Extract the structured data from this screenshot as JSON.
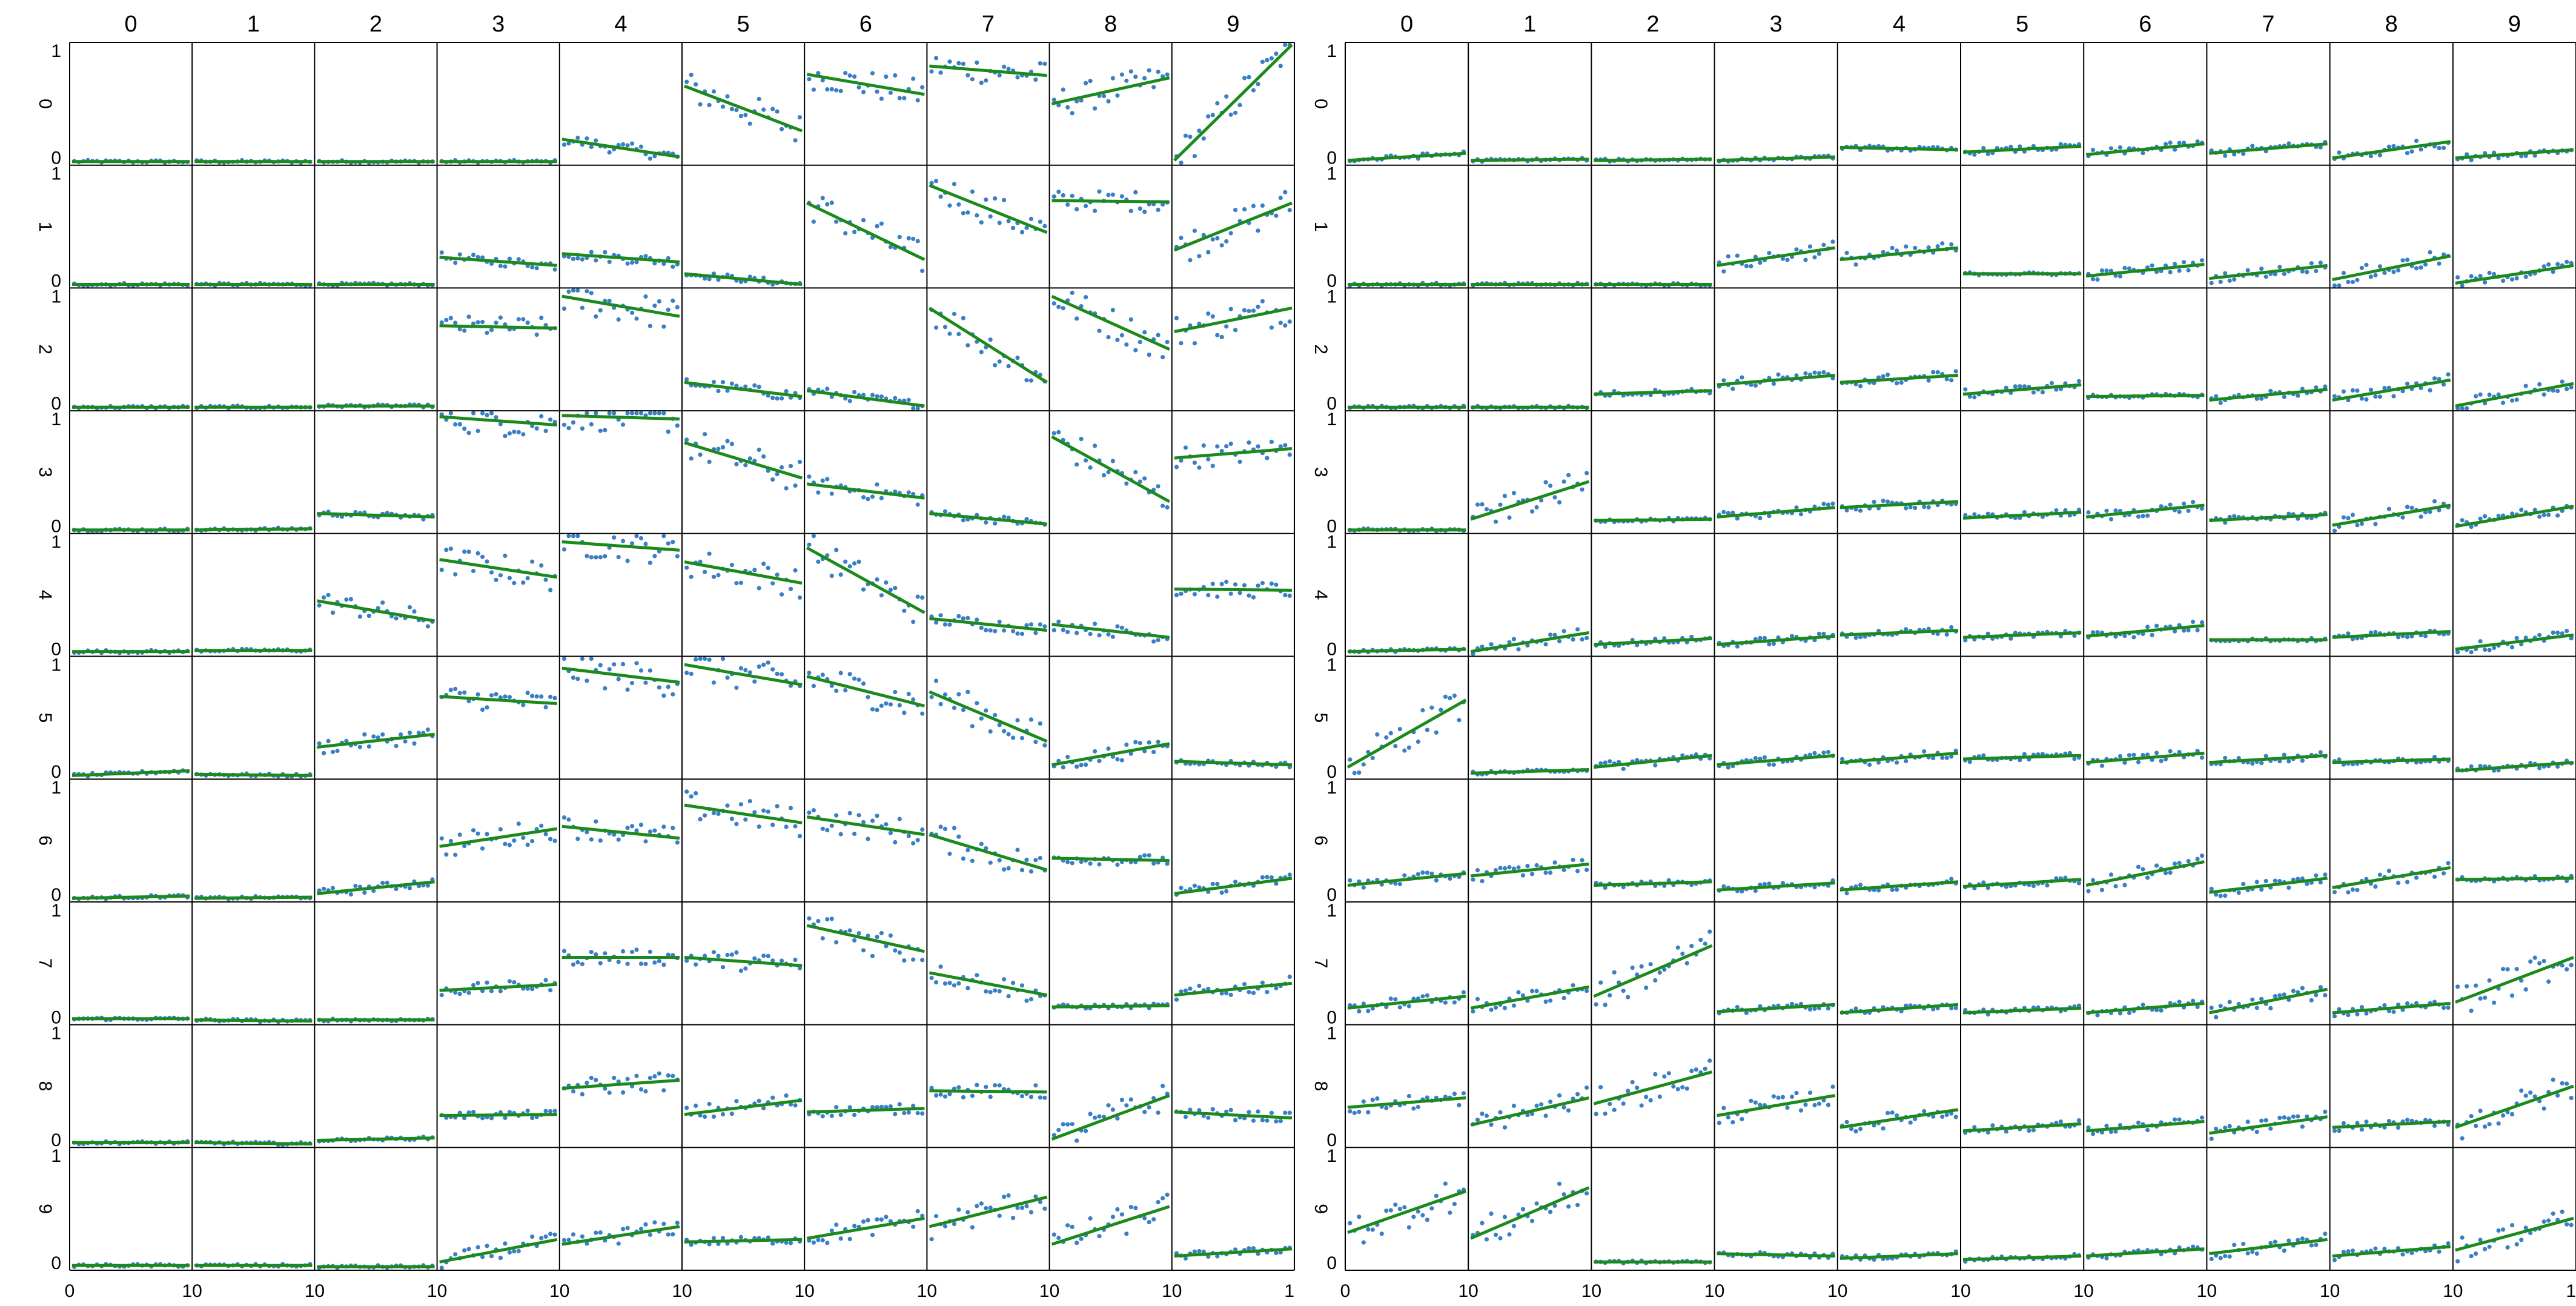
{
  "chart_data": [
    {
      "type": "scatter",
      "panel": "left",
      "column_labels": [
        "0",
        "1",
        "2",
        "3",
        "4",
        "5",
        "6",
        "7",
        "8",
        "9"
      ],
      "row_labels": [
        "0",
        "1",
        "2",
        "3",
        "4",
        "5",
        "6",
        "7",
        "8",
        "9"
      ],
      "ylim": [
        0,
        1
      ],
      "ytick_labels": [
        "0",
        "1"
      ],
      "xtick_labels": [
        "0",
        "10",
        "10",
        "10",
        "10",
        "10",
        "10",
        "10",
        "10",
        "10",
        "1"
      ],
      "point_color": "#3a7fc4",
      "fit_color": "#1b8a1b",
      "fit_lines": [
        [
          [
            0.01,
            0.01
          ],
          [
            0.01,
            0.01
          ],
          [
            0.01,
            0.01
          ],
          [
            0.01,
            0.01
          ],
          [
            0.2,
            0.05
          ],
          [
            0.65,
            0.27
          ],
          [
            0.75,
            0.58
          ],
          [
            0.82,
            0.74
          ],
          [
            0.5,
            0.72
          ],
          [
            0.02,
            1.0
          ]
        ],
        [
          [
            0.01,
            0.01
          ],
          [
            0.01,
            0.01
          ],
          [
            0.01,
            0.01
          ],
          [
            0.24,
            0.17
          ],
          [
            0.27,
            0.2
          ],
          [
            0.1,
            0.01
          ],
          [
            0.7,
            0.22
          ],
          [
            0.85,
            0.45
          ],
          [
            0.72,
            0.71
          ],
          [
            0.3,
            0.7
          ]
        ],
        [
          [
            0.01,
            0.01
          ],
          [
            0.01,
            0.01
          ],
          [
            0.02,
            0.02
          ],
          [
            0.7,
            0.68
          ],
          [
            0.95,
            0.78
          ],
          [
            0.22,
            0.1
          ],
          [
            0.15,
            0.02
          ],
          [
            0.85,
            0.22
          ],
          [
            0.95,
            0.5
          ],
          [
            0.65,
            0.85
          ]
        ],
        [
          [
            0.01,
            0.01
          ],
          [
            0.01,
            0.02
          ],
          [
            0.15,
            0.12
          ],
          [
            0.97,
            0.9
          ],
          [
            0.98,
            0.95
          ],
          [
            0.75,
            0.45
          ],
          [
            0.4,
            0.28
          ],
          [
            0.15,
            0.06
          ],
          [
            0.8,
            0.25
          ],
          [
            0.62,
            0.7
          ]
        ],
        [
          [
            0.02,
            0.02
          ],
          [
            0.03,
            0.03
          ],
          [
            0.45,
            0.28
          ],
          [
            0.8,
            0.65
          ],
          [
            0.95,
            0.88
          ],
          [
            0.78,
            0.6
          ],
          [
            0.9,
            0.35
          ],
          [
            0.3,
            0.2
          ],
          [
            0.25,
            0.14
          ],
          [
            0.55,
            0.54
          ]
        ],
        [
          [
            0.01,
            0.05
          ],
          [
            0.02,
            0.01
          ],
          [
            0.25,
            0.36
          ],
          [
            0.68,
            0.62
          ],
          [
            0.92,
            0.8
          ],
          [
            0.95,
            0.78
          ],
          [
            0.85,
            0.6
          ],
          [
            0.72,
            0.3
          ],
          [
            0.1,
            0.28
          ],
          [
            0.13,
            0.1
          ]
        ],
        [
          [
            0.01,
            0.03
          ],
          [
            0.01,
            0.02
          ],
          [
            0.05,
            0.15
          ],
          [
            0.45,
            0.6
          ],
          [
            0.62,
            0.52
          ],
          [
            0.8,
            0.65
          ],
          [
            0.7,
            0.55
          ],
          [
            0.55,
            0.25
          ],
          [
            0.35,
            0.33
          ],
          [
            0.05,
            0.18
          ]
        ],
        [
          [
            0.03,
            0.03
          ],
          [
            0.02,
            0.01
          ],
          [
            0.02,
            0.02
          ],
          [
            0.27,
            0.32
          ],
          [
            0.55,
            0.55
          ],
          [
            0.55,
            0.48
          ],
          [
            0.82,
            0.6
          ],
          [
            0.42,
            0.23
          ],
          [
            0.13,
            0.14
          ],
          [
            0.23,
            0.33
          ]
        ],
        [
          [
            0.02,
            0.02
          ],
          [
            0.02,
            0.01
          ],
          [
            0.04,
            0.06
          ],
          [
            0.25,
            0.26
          ],
          [
            0.48,
            0.55
          ],
          [
            0.26,
            0.38
          ],
          [
            0.28,
            0.31
          ],
          [
            0.46,
            0.45
          ],
          [
            0.05,
            0.42
          ],
          [
            0.28,
            0.23
          ]
        ],
        [
          [
            0.02,
            0.02
          ],
          [
            0.02,
            0.02
          ],
          [
            0.01,
            0.01
          ],
          [
            0.05,
            0.24
          ],
          [
            0.2,
            0.35
          ],
          [
            0.22,
            0.24
          ],
          [
            0.25,
            0.42
          ],
          [
            0.35,
            0.6
          ],
          [
            0.2,
            0.52
          ],
          [
            0.1,
            0.16
          ]
        ]
      ]
    },
    {
      "type": "scatter",
      "panel": "right",
      "column_labels": [
        "0",
        "1",
        "2",
        "3",
        "4",
        "5",
        "6",
        "7",
        "8",
        "9"
      ],
      "row_labels": [
        "0",
        "1",
        "2",
        "3",
        "4",
        "5",
        "6",
        "7",
        "8",
        "9"
      ],
      "ylim": [
        0,
        1
      ],
      "ytick_labels": [
        "0",
        "1"
      ],
      "xtick_labels": [
        "0",
        "10",
        "10",
        "10",
        "10",
        "10",
        "10",
        "10",
        "10",
        "10",
        "1"
      ],
      "point_color": "#3a7fc4",
      "fit_color": "#1b8a1b",
      "fit_lines": [
        [
          [
            0.02,
            0.08
          ],
          [
            0.02,
            0.03
          ],
          [
            0.02,
            0.03
          ],
          [
            0.02,
            0.05
          ],
          [
            0.13,
            0.11
          ],
          [
            0.09,
            0.14
          ],
          [
            0.07,
            0.16
          ],
          [
            0.08,
            0.16
          ],
          [
            0.04,
            0.18
          ],
          [
            0.04,
            0.11
          ]
        ],
        [
          [
            0.01,
            0.01
          ],
          [
            0.01,
            0.01
          ],
          [
            0.01,
            0.01
          ],
          [
            0.17,
            0.32
          ],
          [
            0.22,
            0.32
          ],
          [
            0.1,
            0.1
          ],
          [
            0.08,
            0.18
          ],
          [
            0.06,
            0.17
          ],
          [
            0.05,
            0.25
          ],
          [
            0.02,
            0.17
          ]
        ],
        [
          [
            0.01,
            0.01
          ],
          [
            0.01,
            0.01
          ],
          [
            0.12,
            0.15
          ],
          [
            0.2,
            0.28
          ],
          [
            0.22,
            0.28
          ],
          [
            0.12,
            0.2
          ],
          [
            0.1,
            0.11
          ],
          [
            0.07,
            0.16
          ],
          [
            0.07,
            0.24
          ],
          [
            0.02,
            0.21
          ]
        ],
        [
          [
            0.01,
            0.01
          ],
          [
            0.1,
            0.42
          ],
          [
            0.09,
            0.1
          ],
          [
            0.12,
            0.2
          ],
          [
            0.2,
            0.25
          ],
          [
            0.11,
            0.16
          ],
          [
            0.12,
            0.22
          ],
          [
            0.09,
            0.14
          ],
          [
            0.05,
            0.22
          ],
          [
            0.04,
            0.21
          ]
        ],
        [
          [
            0.02,
            0.04
          ],
          [
            0.02,
            0.18
          ],
          [
            0.08,
            0.13
          ],
          [
            0.08,
            0.15
          ],
          [
            0.16,
            0.2
          ],
          [
            0.14,
            0.18
          ],
          [
            0.15,
            0.24
          ],
          [
            0.12,
            0.12
          ],
          [
            0.14,
            0.19
          ],
          [
            0.04,
            0.16
          ]
        ],
        [
          [
            0.08,
            0.65
          ],
          [
            0.03,
            0.06
          ],
          [
            0.08,
            0.18
          ],
          [
            0.1,
            0.18
          ],
          [
            0.12,
            0.2
          ],
          [
            0.15,
            0.18
          ],
          [
            0.12,
            0.2
          ],
          [
            0.12,
            0.18
          ],
          [
            0.12,
            0.15
          ],
          [
            0.05,
            0.12
          ]
        ],
        [
          [
            0.12,
            0.22
          ],
          [
            0.2,
            0.3
          ],
          [
            0.12,
            0.15
          ],
          [
            0.08,
            0.14
          ],
          [
            0.08,
            0.15
          ],
          [
            0.11,
            0.17
          ],
          [
            0.12,
            0.32
          ],
          [
            0.06,
            0.18
          ],
          [
            0.1,
            0.27
          ],
          [
            0.17,
            0.18
          ]
        ],
        [
          [
            0.12,
            0.22
          ],
          [
            0.12,
            0.3
          ],
          [
            0.22,
            0.65
          ],
          [
            0.09,
            0.15
          ],
          [
            0.08,
            0.15
          ],
          [
            0.08,
            0.12
          ],
          [
            0.08,
            0.16
          ],
          [
            0.08,
            0.28
          ],
          [
            0.08,
            0.16
          ],
          [
            0.17,
            0.55
          ]
        ],
        [
          [
            0.32,
            0.4
          ],
          [
            0.17,
            0.4
          ],
          [
            0.35,
            0.62
          ],
          [
            0.25,
            0.42
          ],
          [
            0.15,
            0.3
          ],
          [
            0.12,
            0.18
          ],
          [
            0.12,
            0.2
          ],
          [
            0.1,
            0.24
          ],
          [
            0.15,
            0.2
          ],
          [
            0.15,
            0.5
          ]
        ],
        [
          [
            0.3,
            0.65
          ],
          [
            0.25,
            0.68
          ],
          [
            0.05,
            0.05
          ],
          [
            0.12,
            0.1
          ],
          [
            0.08,
            0.12
          ],
          [
            0.07,
            0.1
          ],
          [
            0.1,
            0.16
          ],
          [
            0.12,
            0.24
          ],
          [
            0.1,
            0.18
          ],
          [
            0.15,
            0.42
          ]
        ]
      ]
    }
  ]
}
